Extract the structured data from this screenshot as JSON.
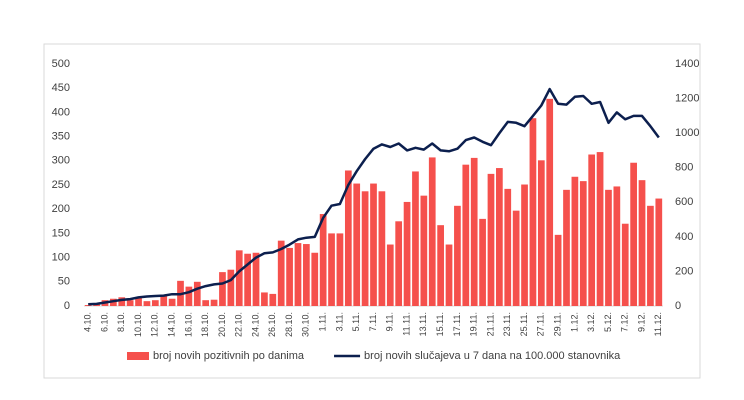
{
  "chart_data": {
    "type": "bar_line",
    "categories": [
      "4.10.",
      null,
      "6.10.",
      null,
      "8.10.",
      null,
      "10.10.",
      null,
      "12.10.",
      null,
      "14.10.",
      null,
      "16.10.",
      null,
      "18.10.",
      null,
      "20.10.",
      null,
      "22.10.",
      null,
      "24.10.",
      null,
      "26.10.",
      null,
      "28.10.",
      null,
      "30.10.",
      null,
      "1.11.",
      null,
      "3.11.",
      null,
      "5.11.",
      null,
      "7.11.",
      null,
      "9.11.",
      null,
      "11.11.",
      null,
      "13.11.",
      null,
      "15.11.",
      null,
      "17.11.",
      null,
      "19.11.",
      null,
      "21.11.",
      null,
      "23.11.",
      null,
      "25.11.",
      null,
      "27.11.",
      null,
      "29.11.",
      null,
      "1.12.",
      null,
      "3.12.",
      null,
      "5.12.",
      null,
      "7.12.",
      null,
      "9.12.",
      null,
      "11.12."
    ],
    "series": [
      {
        "name": "broj novih pozitivnih po danima",
        "color": "#f5504c",
        "type": "bar",
        "values": [
          2,
          5,
          12,
          15,
          18,
          12,
          18,
          10,
          12,
          22,
          15,
          52,
          40,
          50,
          12,
          13,
          70,
          75,
          115,
          108,
          110,
          28,
          25,
          135,
          120,
          130,
          128,
          110,
          190,
          150,
          150,
          280,
          253,
          237,
          253,
          237,
          127,
          175,
          215,
          278,
          228,
          307,
          167,
          127,
          207,
          292,
          306,
          180,
          273,
          285,
          242,
          197,
          251,
          388,
          301,
          428,
          147,
          240,
          267,
          258,
          313,
          318,
          240,
          247,
          170,
          296,
          260,
          207,
          222
        ]
      },
      {
        "name": "broj novih slučajeva u 7 dana na 100.000 stanovnika",
        "color": "#0c1f4e",
        "type": "line",
        "axis": "y2",
        "values": [
          10,
          12,
          20,
          28,
          35,
          40,
          50,
          55,
          58,
          60,
          68,
          68,
          80,
          100,
          115,
          125,
          130,
          150,
          200,
          240,
          280,
          305,
          310,
          330,
          355,
          385,
          395,
          400,
          510,
          580,
          590,
          700,
          780,
          850,
          910,
          935,
          920,
          940,
          900,
          915,
          905,
          940,
          900,
          895,
          910,
          960,
          975,
          950,
          930,
          1000,
          1065,
          1060,
          1040,
          1100,
          1160,
          1255,
          1170,
          1165,
          1210,
          1215,
          1170,
          1180,
          1060,
          1120,
          1080,
          1100,
          1100,
          1040,
          975
        ]
      }
    ],
    "ylim": [
      0,
      500
    ],
    "yticks": [
      0,
      50,
      100,
      150,
      200,
      250,
      300,
      350,
      400,
      450,
      500
    ],
    "y2lim": [
      0,
      1400
    ],
    "y2ticks": [
      0,
      200,
      400,
      600,
      800,
      1000,
      1200,
      1400
    ],
    "legend": "bottom"
  }
}
